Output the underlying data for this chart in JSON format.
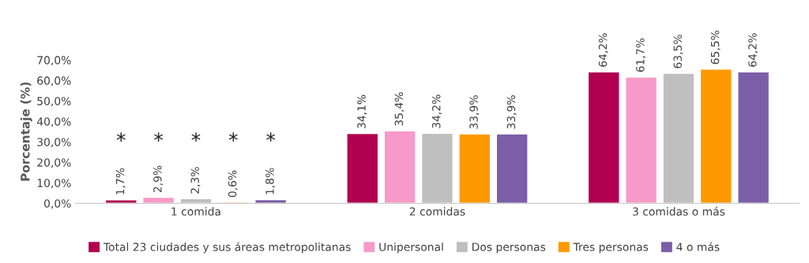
{
  "chart_data": {
    "type": "bar",
    "ylabel": "Porcentaje (%)",
    "categories": [
      "1 comida",
      "2 comidas",
      "3 comidas o más"
    ],
    "series": [
      {
        "name": "Total 23 ciudades y sus áreas metropolitanas",
        "color": "#b0004f",
        "values": [
          1.7,
          34.1,
          64.2
        ],
        "value_labels": [
          "1,7%",
          "34,1%",
          "64,2%"
        ]
      },
      {
        "name": "Unipersonal",
        "color": "#f79ac9",
        "values": [
          2.9,
          35.4,
          61.7
        ],
        "value_labels": [
          "2,9%",
          "35,4%",
          "61,7%"
        ]
      },
      {
        "name": "Dos personas",
        "color": "#bfbfbf",
        "values": [
          2.3,
          34.2,
          63.5
        ],
        "value_labels": [
          "2,3%",
          "34,2%",
          "63,5%"
        ]
      },
      {
        "name": "Tres personas",
        "color": "#ff9900",
        "values": [
          0.6,
          33.9,
          65.5
        ],
        "value_labels": [
          "0,6%",
          "33,9%",
          "65,5%"
        ]
      },
      {
        "name": "4 o más",
        "color": "#7b5ea7",
        "values": [
          1.8,
          33.9,
          64.2
        ],
        "value_labels": [
          "1,8%",
          "33,9%",
          "64,2%"
        ]
      }
    ],
    "ylim": [
      0,
      70
    ],
    "yticks": [
      {
        "value": 0,
        "label": "0,0%"
      },
      {
        "value": 10,
        "label": "10,0%"
      },
      {
        "value": 20,
        "label": "20,0%"
      },
      {
        "value": 30,
        "label": "30,0%"
      },
      {
        "value": 40,
        "label": "40,0%"
      },
      {
        "value": 50,
        "label": "50,0%"
      },
      {
        "value": 60,
        "label": "60,0%"
      },
      {
        "value": 70,
        "label": "70,0%"
      }
    ],
    "annotations": [
      "*",
      "*",
      "*",
      "*",
      "*"
    ],
    "grid": false,
    "legend": "bottom"
  }
}
